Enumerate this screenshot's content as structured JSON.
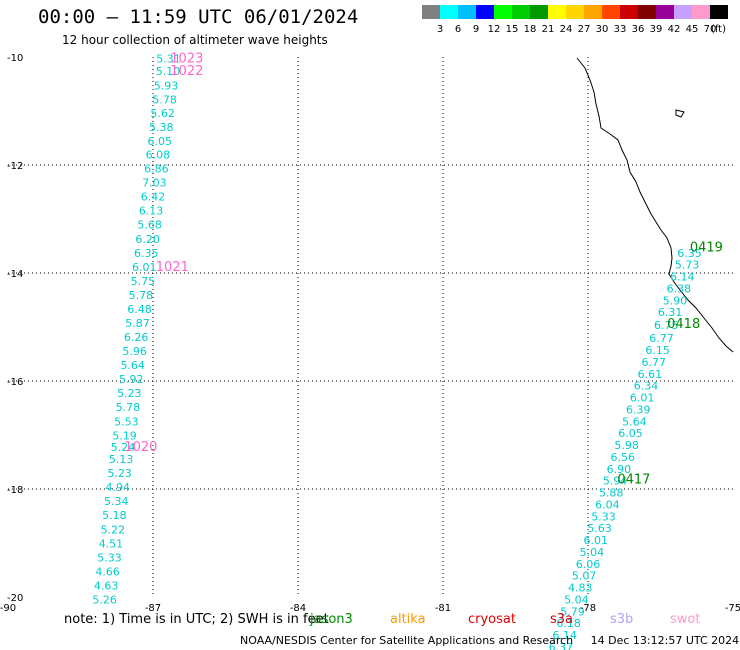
{
  "header": {
    "title": "00:00 – 11:59 UTC 06/01/2024",
    "subtitle": "12 hour collection of altimeter wave heights"
  },
  "legend": {
    "colors": [
      "#808080",
      "#00ffff",
      "#00bfff",
      "#0000ff",
      "#00ff00",
      "#00cc00",
      "#009900",
      "#ffff00",
      "#ffd700",
      "#ffa500",
      "#ff4500",
      "#cc0000",
      "#800000",
      "#990099",
      "#c8a0ff",
      "#ff99cc",
      "#000000"
    ],
    "labels": [
      "3",
      "6",
      "9",
      "12",
      "15",
      "18",
      "21",
      "24",
      "27",
      "30",
      "33",
      "36",
      "39",
      "42",
      "45",
      "70"
    ],
    "unit": "(ft)"
  },
  "map": {
    "lon_range": [
      -90,
      -75
    ],
    "lat_range": [
      -20,
      -10
    ],
    "x_ticks": [
      "-90",
      "-87",
      "-84",
      "-81",
      "-78",
      "-75"
    ],
    "y_ticks": [
      "-10",
      "-12",
      "-14",
      "-16",
      "-18",
      "-20"
    ],
    "text_color": "#00cccc",
    "track_a_color": "#00cccc",
    "track_a": [
      {
        "lon": -86.68,
        "lat": -10.1,
        "text": "5.31"
      },
      {
        "lon": -86.69,
        "lat": -10.33,
        "text": "5.10"
      },
      {
        "lon": -86.73,
        "lat": -10.6,
        "text": "5.93"
      },
      {
        "lon": -86.76,
        "lat": -10.86,
        "text": "5.78"
      },
      {
        "lon": -86.8,
        "lat": -11.11,
        "text": "5.62"
      },
      {
        "lon": -86.83,
        "lat": -11.37,
        "text": "5.38"
      },
      {
        "lon": -86.86,
        "lat": -11.63,
        "text": "6.05"
      },
      {
        "lon": -86.9,
        "lat": -11.88,
        "text": "6.08"
      },
      {
        "lon": -86.93,
        "lat": -12.14,
        "text": "6.86"
      },
      {
        "lon": -86.97,
        "lat": -12.4,
        "text": "7.03"
      },
      {
        "lon": -87.0,
        "lat": -12.66,
        "text": "6.42"
      },
      {
        "lon": -87.04,
        "lat": -12.92,
        "text": "6.13"
      },
      {
        "lon": -87.07,
        "lat": -13.18,
        "text": "5.68"
      },
      {
        "lon": -87.11,
        "lat": -13.44,
        "text": "6.20"
      },
      {
        "lon": -87.14,
        "lat": -13.7,
        "text": "6.35"
      },
      {
        "lon": -87.18,
        "lat": -13.96,
        "text": "6.01"
      },
      {
        "lon": -87.21,
        "lat": -14.22,
        "text": "5.75"
      },
      {
        "lon": -87.25,
        "lat": -14.48,
        "text": "5.78"
      },
      {
        "lon": -87.28,
        "lat": -14.74,
        "text": "6.48"
      },
      {
        "lon": -87.32,
        "lat": -15.0,
        "text": "5.87"
      },
      {
        "lon": -87.35,
        "lat": -15.26,
        "text": "6.26"
      },
      {
        "lon": -87.38,
        "lat": -15.52,
        "text": "5.96"
      },
      {
        "lon": -87.42,
        "lat": -15.78,
        "text": "5.64"
      },
      {
        "lon": -87.45,
        "lat": -16.04,
        "text": "5.92"
      },
      {
        "lon": -87.49,
        "lat": -16.3,
        "text": "5.23"
      },
      {
        "lon": -87.52,
        "lat": -16.56,
        "text": "5.78"
      },
      {
        "lon": -87.55,
        "lat": -16.82,
        "text": "5.53"
      },
      {
        "lon": -87.59,
        "lat": -17.08,
        "text": "5.19"
      },
      {
        "lon": -87.62,
        "lat": -17.3,
        "text": "5.24"
      },
      {
        "lon": -87.66,
        "lat": -17.52,
        "text": "5.13"
      },
      {
        "lon": -87.69,
        "lat": -17.78,
        "text": "5.23"
      },
      {
        "lon": -87.73,
        "lat": -18.04,
        "text": "4.94"
      },
      {
        "lon": -87.76,
        "lat": -18.3,
        "text": "5.34"
      },
      {
        "lon": -87.8,
        "lat": -18.56,
        "text": "5.18"
      },
      {
        "lon": -87.83,
        "lat": -18.82,
        "text": "5.22"
      },
      {
        "lon": -87.87,
        "lat": -19.08,
        "text": "4.51"
      },
      {
        "lon": -87.9,
        "lat": -19.34,
        "text": "5.33"
      },
      {
        "lon": -87.94,
        "lat": -19.6,
        "text": "4.66"
      },
      {
        "lon": -87.97,
        "lat": -19.86,
        "text": "4.63"
      },
      {
        "lon": -88.0,
        "lat": -20.12,
        "text": "5.26"
      }
    ],
    "track_a_times": [
      {
        "lon": -86.3,
        "lat": -10.1,
        "text": "1023",
        "color": "#ff66cc"
      },
      {
        "lon": -86.3,
        "lat": -10.33,
        "text": "1022",
        "color": "#ff66cc"
      },
      {
        "lon": -86.6,
        "lat": -13.96,
        "text": "1021",
        "color": "#ff66cc"
      },
      {
        "lon": -87.25,
        "lat": -17.3,
        "text": "1020",
        "color": "#ff66cc"
      }
    ],
    "track_b": [
      {
        "lon": -75.9,
        "lat": -13.7,
        "text": "6.35"
      },
      {
        "lon": -75.95,
        "lat": -13.92,
        "text": "5.73"
      },
      {
        "lon": -76.05,
        "lat": -14.14,
        "text": "6.14"
      },
      {
        "lon": -76.12,
        "lat": -14.36,
        "text": "6.38"
      },
      {
        "lon": -76.2,
        "lat": -14.58,
        "text": "5.90"
      },
      {
        "lon": -76.3,
        "lat": -14.8,
        "text": "6.31"
      },
      {
        "lon": -76.38,
        "lat": -15.04,
        "text": "6.75"
      },
      {
        "lon": -76.48,
        "lat": -15.28,
        "text": "6.77"
      },
      {
        "lon": -76.56,
        "lat": -15.5,
        "text": "6.15"
      },
      {
        "lon": -76.64,
        "lat": -15.72,
        "text": "6.77"
      },
      {
        "lon": -76.72,
        "lat": -15.94,
        "text": "6.61"
      },
      {
        "lon": -76.8,
        "lat": -16.16,
        "text": "6.34"
      },
      {
        "lon": -76.88,
        "lat": -16.38,
        "text": "6.01"
      },
      {
        "lon": -76.96,
        "lat": -16.6,
        "text": "6.39"
      },
      {
        "lon": -77.04,
        "lat": -16.82,
        "text": "5.64"
      },
      {
        "lon": -77.12,
        "lat": -17.04,
        "text": "6.05"
      },
      {
        "lon": -77.2,
        "lat": -17.26,
        "text": "5.98"
      },
      {
        "lon": -77.28,
        "lat": -17.48,
        "text": "6.56"
      },
      {
        "lon": -77.36,
        "lat": -17.7,
        "text": "6.90"
      },
      {
        "lon": -77.44,
        "lat": -17.92,
        "text": "5.94"
      },
      {
        "lon": -77.52,
        "lat": -18.14,
        "text": "5.88"
      },
      {
        "lon": -77.6,
        "lat": -18.36,
        "text": "6.04"
      },
      {
        "lon": -77.68,
        "lat": -18.58,
        "text": "5.33"
      },
      {
        "lon": -77.76,
        "lat": -18.8,
        "text": "5.63"
      },
      {
        "lon": -77.84,
        "lat": -19.02,
        "text": "6.01"
      },
      {
        "lon": -77.92,
        "lat": -19.24,
        "text": "5.04"
      },
      {
        "lon": -78.0,
        "lat": -19.46,
        "text": "6.06"
      },
      {
        "lon": -78.08,
        "lat": -19.68,
        "text": "5.07"
      },
      {
        "lon": -78.16,
        "lat": -19.9,
        "text": "4.83"
      },
      {
        "lon": -78.24,
        "lat": -20.12,
        "text": "5.04"
      },
      {
        "lon": -78.32,
        "lat": -20.34,
        "text": "5.79"
      },
      {
        "lon": -78.4,
        "lat": -20.56,
        "text": "6.18"
      },
      {
        "lon": -78.48,
        "lat": -20.78,
        "text": "6.14"
      },
      {
        "lon": -78.56,
        "lat": -21.0,
        "text": "6.37"
      }
    ],
    "track_b_times": [
      {
        "lon": -75.55,
        "lat": -13.6,
        "text": "0419",
        "color": "#008800"
      },
      {
        "lon": -76.02,
        "lat": -15.02,
        "text": "0418",
        "color": "#008800"
      },
      {
        "lon": -77.05,
        "lat": -17.9,
        "text": "0417",
        "color": "#008800"
      }
    ]
  },
  "note": {
    "prefix": "note:  1) Time is in UTC; 2) SWH is in feet",
    "satellites": [
      {
        "name": "jason3",
        "color": "#008800"
      },
      {
        "name": "altika",
        "color": "#ff9900"
      },
      {
        "name": "cryosat",
        "color": "#dd0000"
      },
      {
        "name": "s3a",
        "color": "#cc0000"
      },
      {
        "name": "s3b",
        "color": "#b0a0ff"
      },
      {
        "name": "swot",
        "color": "#ff99cc"
      }
    ]
  },
  "footer": {
    "org": "NOAA/NESDIS Center for Satellite Applications and Research",
    "timestamp": "14 Dec 13:12:57 UTC 2024"
  }
}
